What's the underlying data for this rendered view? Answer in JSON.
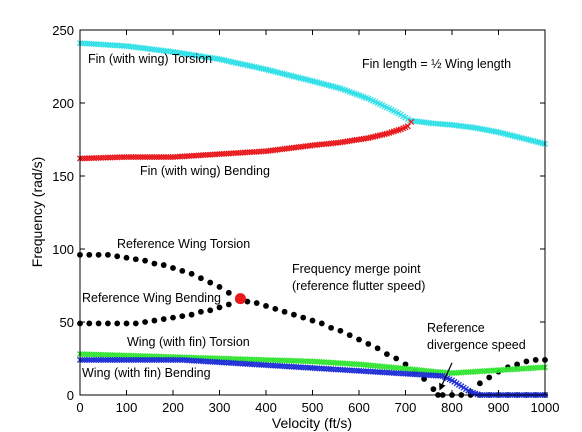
{
  "chart_data": {
    "type": "scatter",
    "xlabel": "Velocity (ft/s)",
    "ylabel": "Frequency (rad/s)",
    "xlim": [
      0,
      1000
    ],
    "ylim": [
      0,
      250
    ],
    "xticks": [
      "0",
      "100",
      "200",
      "300",
      "400",
      "500",
      "600",
      "700",
      "800",
      "900",
      "1000"
    ],
    "yticks": [
      "0",
      "50",
      "100",
      "150",
      "200",
      "250"
    ],
    "grid": false,
    "colors": {
      "fin_torsion": "#33e0e8",
      "fin_bending": "#e8191d",
      "ref_wing": "#000000",
      "merge_point": "#e8191d",
      "wing_torsion": "#33e533",
      "wing_bending": "#1f2fd6"
    },
    "series": [
      {
        "name": "Fin (with wing) Torsion",
        "marker": "x",
        "x": [
          0,
          100,
          200,
          300,
          400,
          500,
          560,
          620,
          660,
          690,
          710,
          760,
          800,
          850,
          900,
          950,
          1000
        ],
        "y": [
          241,
          239,
          235,
          230,
          223,
          215,
          210,
          203,
          197,
          192,
          188,
          186,
          185,
          183,
          180,
          176,
          172
        ]
      },
      {
        "name": "Fin (with wing) Bending",
        "marker": "x",
        "x": [
          0,
          100,
          200,
          300,
          400,
          500,
          560,
          620,
          660,
          690,
          705,
          712
        ],
        "y": [
          162,
          163,
          163,
          165,
          167,
          171,
          173,
          176,
          179,
          182,
          184,
          187
        ]
      },
      {
        "name": "Reference Wing Torsion",
        "marker": "dot",
        "x": [
          0,
          20,
          40,
          60,
          80,
          100,
          120,
          140,
          160,
          180,
          200,
          220,
          240,
          260,
          280,
          300,
          320,
          340
        ],
        "y": [
          96,
          96,
          96,
          96,
          95,
          94,
          93,
          92,
          90,
          89,
          87,
          85,
          83,
          80,
          77,
          74,
          70,
          66
        ]
      },
      {
        "name": "Reference Wing Bending",
        "marker": "dot",
        "x": [
          0,
          20,
          40,
          60,
          80,
          100,
          120,
          140,
          160,
          180,
          200,
          220,
          240,
          260,
          280,
          300,
          320,
          340
        ],
        "y": [
          49,
          49,
          49,
          49,
          49,
          49,
          49,
          50,
          51,
          52,
          53,
          54,
          55,
          57,
          58,
          60,
          62,
          65
        ]
      },
      {
        "name": "Reference Wing (merged)",
        "marker": "dot",
        "x": [
          360,
          380,
          400,
          420,
          440,
          460,
          480,
          500,
          520,
          540,
          560,
          580,
          600,
          620,
          640,
          660,
          680,
          700,
          720,
          740,
          760,
          770
        ],
        "y": [
          64,
          63,
          61,
          59,
          57,
          55,
          53,
          51,
          49,
          46,
          44,
          41,
          38,
          35,
          32,
          28,
          25,
          21,
          16,
          11,
          4,
          0
        ]
      },
      {
        "name": "Reference Wing (post-divergence)",
        "marker": "dot",
        "x": [
          780,
          800,
          820,
          840,
          860,
          880,
          900,
          920,
          940,
          960,
          980,
          1000
        ],
        "y": [
          0,
          0,
          0,
          0,
          0,
          0,
          0,
          0,
          0,
          0,
          0,
          0
        ]
      },
      {
        "name": "Reference Wing (divergent branch)",
        "marker": "dot",
        "x": [
          840,
          860,
          880,
          900,
          920,
          940,
          960,
          980,
          1000
        ],
        "y": [
          2,
          8,
          12,
          16,
          19,
          21,
          23,
          24,
          24
        ]
      },
      {
        "name": "Wing (with fin) Torsion",
        "marker": "x",
        "x": [
          0,
          100,
          200,
          300,
          400,
          500,
          600,
          700,
          760,
          800,
          850,
          900,
          950,
          1000
        ],
        "y": [
          28,
          27,
          26,
          25,
          24,
          23,
          21,
          18,
          16,
          15,
          16,
          17,
          18,
          19
        ]
      },
      {
        "name": "Wing (with fin) Bending",
        "marker": "x",
        "x": [
          0,
          50,
          100,
          150,
          200,
          220,
          780,
          800,
          820,
          840,
          860,
          900,
          950,
          1000
        ],
        "y": [
          24,
          24,
          24,
          24,
          24,
          24,
          13,
          10,
          6,
          2,
          0,
          0,
          0,
          0
        ]
      }
    ],
    "merge_point": {
      "x": 345,
      "y": 66
    },
    "annotations": {
      "fin_length": "Fin length = ½ Wing length",
      "fin_torsion": "Fin (with wing) Torsion",
      "fin_bending": "Fin (with wing) Bending",
      "ref_torsion": "Reference Wing Torsion",
      "ref_bending": "Reference Wing Bending",
      "merge_line1": "Frequency merge point",
      "merge_line2": "(reference flutter speed)",
      "div_line1": "Reference",
      "div_line2": "divergence speed",
      "wing_torsion": "Wing  (with fin) Torsion",
      "wing_bending": "Wing (with fin) Bending"
    },
    "arrow": {
      "from": [
        800,
        22
      ],
      "to": [
        773,
        3
      ]
    }
  }
}
